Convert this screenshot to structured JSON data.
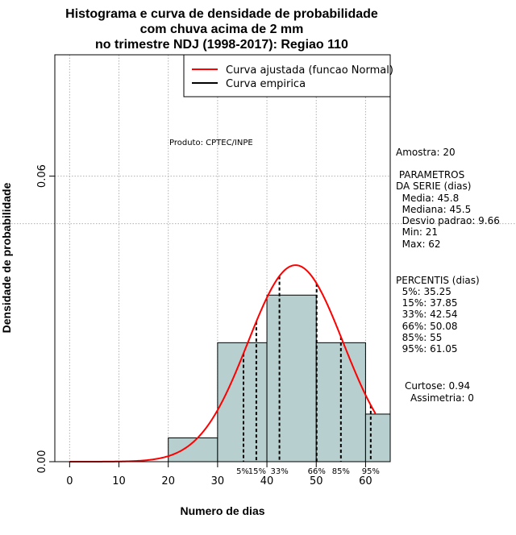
{
  "chart_data": {
    "type": "histogram",
    "title": [
      "Histograma e curva de densidade de probabilidade",
      "com chuva acima de 2 mm",
      "no trimestre NDJ (1998-2017): Regiao 110"
    ],
    "xlabel": "Numero de dias",
    "ylabel": "Densidade de probabilidade",
    "xlim": [
      -3,
      65
    ],
    "ylim": [
      0,
      0.0855
    ],
    "xticks": [
      0,
      10,
      20,
      30,
      40,
      50,
      60
    ],
    "yticks": [
      0.0,
      0.06
    ],
    "ytick_labels": [
      "0.00",
      "0.06"
    ],
    "grid": true,
    "bins": [
      {
        "x0": 20,
        "x1": 30,
        "density": 0.005
      },
      {
        "x0": 30,
        "x1": 40,
        "density": 0.025
      },
      {
        "x0": 40,
        "x1": 50,
        "density": 0.035
      },
      {
        "x0": 50,
        "x1": 60,
        "density": 0.025
      },
      {
        "x0": 60,
        "x1": 65,
        "density": 0.01
      }
    ],
    "reference_line_y": 0.05,
    "normal_fit": {
      "mean": 45.8,
      "sd": 9.66,
      "color": "#ff0000"
    },
    "percentiles": [
      {
        "label": "5%",
        "x": 35.25
      },
      {
        "label": "15%",
        "x": 37.85
      },
      {
        "label": "33%",
        "x": 42.54
      },
      {
        "label": "66%",
        "x": 50.08
      },
      {
        "label": "85%",
        "x": 55
      },
      {
        "label": "95%",
        "x": 61.05
      }
    ],
    "legend": {
      "position": "top-right",
      "entries": [
        {
          "label": "Curva ajustada (funcao Normal)",
          "color": "#ff0000"
        },
        {
          "label": "Curva empirica",
          "color": "#000000"
        }
      ]
    },
    "annotation": "Produto: CPTEC/INPE",
    "colors": {
      "bars": "#b7cfcf",
      "fit": "#ff0000",
      "grid": "#b0b0b0"
    }
  },
  "side_panel": {
    "amostra": "Amostra: 20",
    "parametros_title": [
      " PARAMETROS",
      "DA SERIE (dias)"
    ],
    "parametros": [
      "  Media: 45.8",
      "  Mediana: 45.5",
      "  Desvio padrao: 9.66",
      "  Min: 21",
      "  Max: 62"
    ],
    "percentis_title": "PERCENTIS (dias)",
    "percentis": [
      "  5%: 35.25",
      "  15%: 37.85",
      "  33%: 42.54",
      "  66%: 50.08",
      "  85%: 55",
      "  95%: 61.05"
    ],
    "curtose": "Curtose: 0.94",
    "assimetria": "Assimetria: 0"
  }
}
